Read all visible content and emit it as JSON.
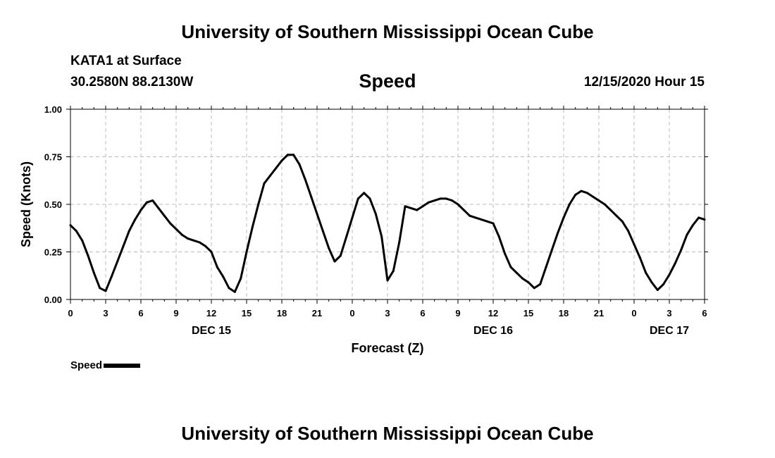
{
  "header": {
    "title_top": "University of Southern Mississippi Ocean Cube",
    "title_bottom": "University of Southern Mississippi Ocean Cube",
    "station": "KATA1 at Surface",
    "coords": "30.2580N 88.2130W",
    "variable": "Speed",
    "datetime": "12/15/2020 Hour 15"
  },
  "legend": {
    "label": "Speed"
  },
  "colors": {
    "line": "#000000",
    "grid": "#bbbbbb",
    "axis": "#000000"
  },
  "chart_data": {
    "type": "line",
    "title": "Speed",
    "xlabel": "Forecast (Z)",
    "ylabel": "Speed (Knots)",
    "xlim": [
      0,
      54
    ],
    "ylim": [
      0,
      1
    ],
    "grid": true,
    "legend_position": "bottom-left",
    "xticks": [
      0,
      3,
      6,
      9,
      12,
      15,
      18,
      21,
      24,
      27,
      30,
      33,
      36,
      39,
      42,
      45,
      48,
      51,
      54
    ],
    "xtick_labels": [
      "0",
      "3",
      "6",
      "9",
      "12",
      "15",
      "18",
      "21",
      "0",
      "3",
      "6",
      "9",
      "12",
      "15",
      "18",
      "21",
      "0",
      "3",
      "6"
    ],
    "yticks": [
      0,
      0.25,
      0.5,
      0.75,
      1.0
    ],
    "ytick_labels": [
      "0.00",
      "0.25",
      "0.50",
      "0.75",
      "1.00"
    ],
    "day_labels": [
      {
        "x": 12,
        "label": "DEC 15"
      },
      {
        "x": 36,
        "label": "DEC 16"
      },
      {
        "x": 51,
        "label": "DEC 17"
      }
    ],
    "series": [
      {
        "name": "Speed",
        "x": [
          0,
          0.5,
          1,
          1.5,
          2,
          2.5,
          3,
          3.5,
          4,
          4.5,
          5,
          5.5,
          6,
          6.5,
          7,
          7.5,
          8,
          8.5,
          9,
          9.5,
          10,
          10.5,
          11,
          11.5,
          12,
          12.5,
          13,
          13.5,
          14,
          14.5,
          15,
          15.5,
          16,
          16.5,
          17,
          17.5,
          18,
          18.5,
          19,
          19.5,
          20,
          20.5,
          21,
          21.5,
          22,
          22.5,
          23,
          23.5,
          24,
          24.5,
          25,
          25.5,
          26,
          26.5,
          27,
          27.5,
          28,
          28.5,
          29,
          29.5,
          30,
          30.5,
          31,
          31.5,
          32,
          32.5,
          33,
          33.5,
          34,
          34.5,
          35,
          35.5,
          36,
          36.5,
          37,
          37.5,
          38,
          38.5,
          39,
          39.5,
          40,
          40.5,
          41,
          41.5,
          42,
          42.5,
          43,
          43.5,
          44,
          44.5,
          45,
          45.5,
          46,
          46.5,
          47,
          47.5,
          48,
          48.5,
          49,
          49.5,
          50,
          50.5,
          51,
          51.5,
          52,
          52.5,
          53,
          53.5,
          54
        ],
        "values": [
          0.39,
          0.36,
          0.31,
          0.23,
          0.14,
          0.06,
          0.045,
          0.12,
          0.2,
          0.28,
          0.36,
          0.42,
          0.47,
          0.51,
          0.52,
          0.48,
          0.44,
          0.4,
          0.37,
          0.34,
          0.32,
          0.31,
          0.3,
          0.28,
          0.25,
          0.17,
          0.12,
          0.06,
          0.04,
          0.11,
          0.25,
          0.38,
          0.5,
          0.61,
          0.65,
          0.69,
          0.73,
          0.76,
          0.76,
          0.71,
          0.63,
          0.54,
          0.45,
          0.36,
          0.27,
          0.2,
          0.23,
          0.33,
          0.43,
          0.53,
          0.56,
          0.53,
          0.45,
          0.33,
          0.1,
          0.15,
          0.3,
          0.49,
          0.48,
          0.47,
          0.49,
          0.51,
          0.52,
          0.53,
          0.53,
          0.52,
          0.5,
          0.47,
          0.44,
          0.43,
          0.42,
          0.41,
          0.4,
          0.33,
          0.24,
          0.17,
          0.14,
          0.11,
          0.09,
          0.06,
          0.08,
          0.17,
          0.26,
          0.35,
          0.43,
          0.5,
          0.55,
          0.57,
          0.56,
          0.54,
          0.52,
          0.5,
          0.47,
          0.44,
          0.41,
          0.36,
          0.29,
          0.22,
          0.14,
          0.09,
          0.05,
          0.08,
          0.13,
          0.19,
          0.26,
          0.34,
          0.39,
          0.43,
          0.42
        ]
      }
    ]
  }
}
